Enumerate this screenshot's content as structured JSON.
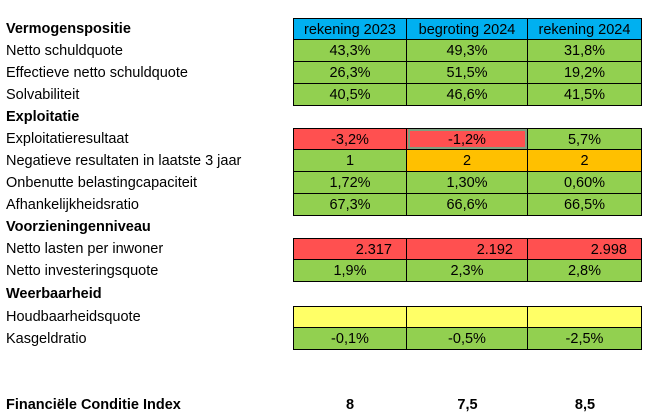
{
  "columns": [
    "rekening 2023",
    "begroting 2024",
    "rekening 2024"
  ],
  "colors": {
    "header": "#00b0f0",
    "green": "#92d050",
    "red": "#ff5050",
    "orange": "#ffc000",
    "yellow": "#ffff66"
  },
  "sections": {
    "vermogenspositie": "Vermogenspositie",
    "exploitatie": "Exploitatie",
    "voorzieningenniveau": "Voorzieningenniveau",
    "weerbaarheid": "Weerbaarheid"
  },
  "rows": {
    "netto_schuldquote": {
      "label": "Netto schuldquote",
      "values": [
        "43,3%",
        "49,3%",
        "31,8%"
      ]
    },
    "effectieve_netto_schuldquote": {
      "label": "Effectieve netto schuldquote",
      "values": [
        "26,3%",
        "51,5%",
        "19,2%"
      ]
    },
    "solvabiliteit": {
      "label": "Solvabiliteit",
      "values": [
        "40,5%",
        "46,6%",
        "41,5%"
      ]
    },
    "exploitatieresultaat": {
      "label": "Exploitatieresultaat",
      "values": [
        "-3,2%",
        "-1,2%",
        "5,7%"
      ]
    },
    "negatieve_resultaten": {
      "label": "Negatieve resultaten in laatste 3 jaar",
      "values": [
        "1",
        "2",
        "2"
      ]
    },
    "onbenutte_belastingcapaciteit": {
      "label": "Onbenutte belastingcapaciteit",
      "values": [
        "1,72%",
        "1,30%",
        "0,60%"
      ]
    },
    "afhankelijkheidsratio": {
      "label": "Afhankelijkheidsratio",
      "values": [
        "67,3%",
        "66,6%",
        "66,5%"
      ]
    },
    "netto_lasten_per_inwoner": {
      "label": "Netto lasten per inwoner",
      "values": [
        "2.317",
        "2.192",
        "2.998"
      ]
    },
    "netto_investeringsquote": {
      "label": "Netto investeringsquote",
      "values": [
        "1,9%",
        "2,3%",
        "2,8%"
      ]
    },
    "houdbaarheidsquote": {
      "label": "Houdbaarheidsquote",
      "values": [
        "",
        "",
        ""
      ]
    },
    "kasgeldratio": {
      "label": "Kasgeldratio",
      "values": [
        "-0,1%",
        "-0,5%",
        "-2,5%"
      ]
    }
  },
  "fci": {
    "label": "Financiële Conditie Index",
    "values": [
      "8",
      "7,5",
      "8,5"
    ]
  }
}
